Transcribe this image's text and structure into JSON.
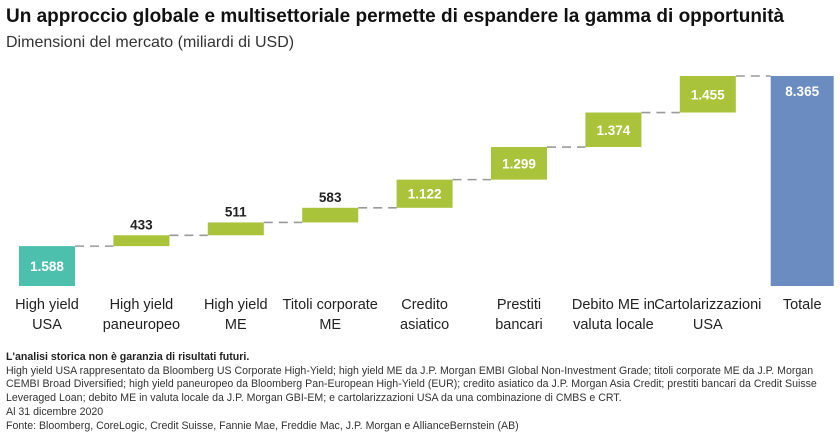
{
  "header": {
    "title": "Un approccio globale e multisettoriale permette di espandere la gamma di opportunità",
    "subtitle": "Dimensioni del mercato (miliardi di USD)"
  },
  "colors": {
    "first_bar": "#4dbfad",
    "step_bar": "#a9c33a",
    "total_bar": "#6b8cc1",
    "connector": "#9a9a9a"
  },
  "chart_data": {
    "type": "bar",
    "subtype": "waterfall",
    "categories": [
      [
        "High yield",
        "USA"
      ],
      [
        "High yield",
        "paneuropeo"
      ],
      [
        "High yield",
        "ME"
      ],
      [
        "Titoli corporate",
        "ME"
      ],
      [
        "Credito",
        "asiatico"
      ],
      [
        "Prestiti",
        "bancari"
      ],
      [
        "Debito ME in",
        "valuta locale"
      ],
      [
        "Cartolarizzazioni",
        "USA"
      ],
      [
        "Totale"
      ]
    ],
    "values": [
      1588,
      433,
      511,
      583,
      1122,
      1299,
      1374,
      1455,
      8365
    ],
    "value_labels": [
      "1.588",
      "433",
      "511",
      "583",
      "1.122",
      "1.299",
      "1.374",
      "1.455",
      "8.365"
    ],
    "bar_kinds": [
      "first",
      "step",
      "step",
      "step",
      "step",
      "step",
      "step",
      "step",
      "total"
    ],
    "ylim": [
      0,
      8365
    ],
    "grid": false,
    "legend": "none"
  },
  "footnotes": {
    "disclaimer": "L'analisi storica non è garanzia di risultati futuri.",
    "sources_detail": "High yield USA rappresentato da Bloomberg US Corporate High-Yield; high yield ME da J.P. Morgan EMBI Global Non-Investment Grade; titoli corporate ME da J.P. Morgan CEMBI Broad Diversified; high yield paneuropeo da Bloomberg Pan-European High-Yield (EUR); credito asiatico da J.P. Morgan Asia Credit; prestiti bancari da Credit Suisse Leveraged Loan; debito ME in valuta locale da J.P. Morgan GBI-EM; e cartolarizzazioni USA da una combinazione di CMBS e CRT.",
    "date": "Al 31 dicembre 2020",
    "source": "Fonte: Bloomberg, CoreLogic, Credit Suisse, Fannie Mae, Freddie Mac, J.P. Morgan e AllianceBernstein (AB)"
  }
}
